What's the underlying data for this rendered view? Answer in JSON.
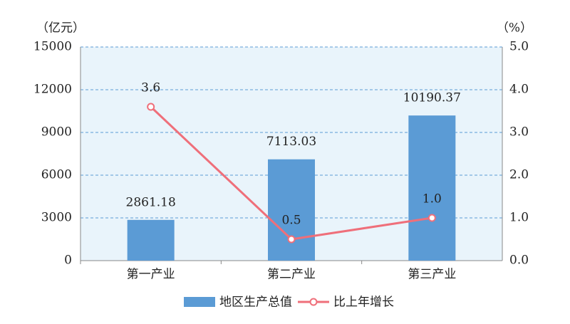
{
  "chart_data": {
    "type": "bar",
    "y_label": "（亿元）",
    "y2_label": "（%）",
    "categories": [
      "第一产业",
      "第二产业",
      "第三产业"
    ],
    "series": [
      {
        "name": "地区生产总值",
        "type": "bar",
        "color": "#5b9bd5",
        "values": [
          2861.18,
          7113.03,
          10190.37
        ]
      },
      {
        "name": "比上年增长",
        "type": "line",
        "axis": "y2",
        "color": "#ef6f7a",
        "values": [
          3.6,
          0.5,
          1.0
        ],
        "value_labels": [
          "3.6",
          "0.5",
          "1.0"
        ]
      }
    ],
    "ylim": [
      0,
      15000
    ],
    "yticks": [
      0,
      3000,
      6000,
      9000,
      12000,
      15000
    ],
    "y2lim": [
      0,
      5
    ],
    "y2ticks": [
      {
        "value": 0,
        "label": "0.0"
      },
      {
        "value": 1,
        "label": "1.0"
      },
      {
        "value": 2,
        "label": "2.0"
      },
      {
        "value": 3,
        "label": "3.0"
      },
      {
        "value": 4,
        "label": "4.0"
      },
      {
        "value": 5,
        "label": "5.0"
      }
    ],
    "grid": true,
    "plot_background": "#e9f4fb"
  }
}
